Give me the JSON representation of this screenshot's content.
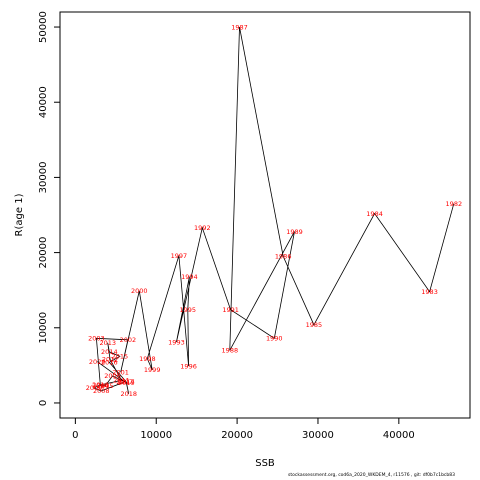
{
  "colors": {
    "line": "#000000",
    "point_label": "#ff0000",
    "axis": "#000000"
  },
  "footer": "stockassessment.org, cod6a_2020_WKDEM_4, r11576 , git: df0b7c1bcb83",
  "chart_data": {
    "type": "line",
    "xlabel": "SSB",
    "ylabel": "R(age 1)",
    "xlim": [
      -1900,
      48800
    ],
    "ylim": [
      -2000,
      52000
    ],
    "xticks": [
      0,
      10000,
      20000,
      30000,
      40000
    ],
    "yticks": [
      0,
      10000,
      20000,
      30000,
      40000,
      50000
    ],
    "xtick_labels": [
      "0",
      "10000",
      "20000",
      "30000",
      "40000"
    ],
    "ytick_labels": [
      "0",
      "10000",
      "20000",
      "30000",
      "40000",
      "50000"
    ],
    "grid": false,
    "series": [
      {
        "points": [
          {
            "year": "1982",
            "x": 46800,
            "y": 26500
          },
          {
            "year": "1983",
            "x": 43800,
            "y": 14800
          },
          {
            "year": "1984",
            "x": 37000,
            "y": 25200
          },
          {
            "year": "1985",
            "x": 29500,
            "y": 10400
          },
          {
            "year": "1986",
            "x": 25700,
            "y": 19500
          },
          {
            "year": "1987",
            "x": 20300,
            "y": 50000
          },
          {
            "year": "1988",
            "x": 19100,
            "y": 7000
          },
          {
            "year": "1989",
            "x": 27100,
            "y": 22800
          },
          {
            "year": "1990",
            "x": 24600,
            "y": 8600
          },
          {
            "year": "1991",
            "x": 19200,
            "y": 12400
          },
          {
            "year": "1992",
            "x": 15700,
            "y": 23300
          },
          {
            "year": "1993",
            "x": 12500,
            "y": 8100
          },
          {
            "year": "1994",
            "x": 14100,
            "y": 16800
          },
          {
            "year": "1995",
            "x": 13900,
            "y": 12400
          },
          {
            "year": "1996",
            "x": 14000,
            "y": 4900
          },
          {
            "year": "1997",
            "x": 12800,
            "y": 19600
          },
          {
            "year": "1998",
            "x": 8900,
            "y": 5900
          },
          {
            "year": "1999",
            "x": 9500,
            "y": 4400
          },
          {
            "year": "2000",
            "x": 7900,
            "y": 14900
          },
          {
            "year": "2001",
            "x": 5600,
            "y": 4100
          },
          {
            "year": "2002",
            "x": 6500,
            "y": 8400
          },
          {
            "year": "2003",
            "x": 2600,
            "y": 8600
          },
          {
            "year": "2004",
            "x": 3100,
            "y": 2300
          },
          {
            "year": "2005",
            "x": 3700,
            "y": 2300
          },
          {
            "year": "2006",
            "x": 4600,
            "y": 3600
          },
          {
            "year": "2007",
            "x": 6100,
            "y": 2800
          },
          {
            "year": "2008",
            "x": 3200,
            "y": 1600
          },
          {
            "year": "2009",
            "x": 2300,
            "y": 2000
          },
          {
            "year": "2010",
            "x": 3100,
            "y": 2400
          },
          {
            "year": "2011",
            "x": 5700,
            "y": 3000
          },
          {
            "year": "2012",
            "x": 4300,
            "y": 5800
          },
          {
            "year": "2013",
            "x": 4000,
            "y": 8000
          },
          {
            "year": "2014",
            "x": 4200,
            "y": 6800
          },
          {
            "year": "2015",
            "x": 5500,
            "y": 6200
          },
          {
            "year": "2016",
            "x": 4200,
            "y": 5400
          },
          {
            "year": "2017",
            "x": 6300,
            "y": 2800
          },
          {
            "year": "2018",
            "x": 6600,
            "y": 1200
          },
          {
            "year": "2019",
            "x": 6300,
            "y": 2700
          },
          {
            "year": "2020",
            "x": 2700,
            "y": 5500
          }
        ]
      }
    ]
  }
}
